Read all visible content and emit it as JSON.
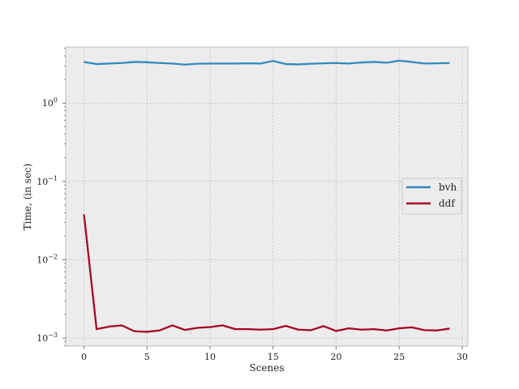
{
  "chart_data": {
    "type": "line",
    "title": "",
    "xlabel": "Scenes",
    "ylabel": "Time, (in sec)",
    "yscale": "log",
    "xlim": [
      -1.45,
      30.45
    ],
    "ylim": [
      0.00079,
      5.2
    ],
    "x_ticks": [
      0,
      5,
      10,
      15,
      20,
      25,
      30
    ],
    "x_tick_labels": [
      "0",
      "5",
      "10",
      "15",
      "20",
      "25",
      "30"
    ],
    "y_ticks": [
      0.001,
      0.01,
      0.1,
      1
    ],
    "y_tick_labels": [
      {
        "base": "10",
        "exp": "−3"
      },
      {
        "base": "10",
        "exp": "−2"
      },
      {
        "base": "10",
        "exp": "−1"
      },
      {
        "base": "10",
        "exp": "0"
      }
    ],
    "grid": true,
    "legend_position": "center-right",
    "background": "#ececec",
    "x": [
      0,
      1,
      2,
      3,
      4,
      5,
      6,
      7,
      8,
      9,
      10,
      11,
      12,
      13,
      14,
      15,
      16,
      17,
      18,
      19,
      20,
      21,
      22,
      23,
      24,
      25,
      26,
      27,
      28,
      29
    ],
    "series": [
      {
        "name": "bvh",
        "color": "#348abd",
        "values": [
          3.35,
          3.15,
          3.2,
          3.25,
          3.35,
          3.32,
          3.25,
          3.2,
          3.1,
          3.18,
          3.2,
          3.2,
          3.2,
          3.22,
          3.2,
          3.45,
          3.15,
          3.12,
          3.18,
          3.22,
          3.25,
          3.2,
          3.3,
          3.35,
          3.28,
          3.48,
          3.35,
          3.2,
          3.22,
          3.25
        ]
      },
      {
        "name": "ddf",
        "color": "#a60628",
        "values": [
          0.038,
          0.0013,
          0.0014,
          0.00145,
          0.00122,
          0.0012,
          0.00125,
          0.00145,
          0.00127,
          0.00135,
          0.00138,
          0.00145,
          0.0013,
          0.0013,
          0.00128,
          0.0013,
          0.00143,
          0.00128,
          0.00126,
          0.00142,
          0.00123,
          0.00133,
          0.00128,
          0.0013,
          0.00125,
          0.00133,
          0.00137,
          0.00126,
          0.00125,
          0.00132
        ]
      }
    ]
  }
}
